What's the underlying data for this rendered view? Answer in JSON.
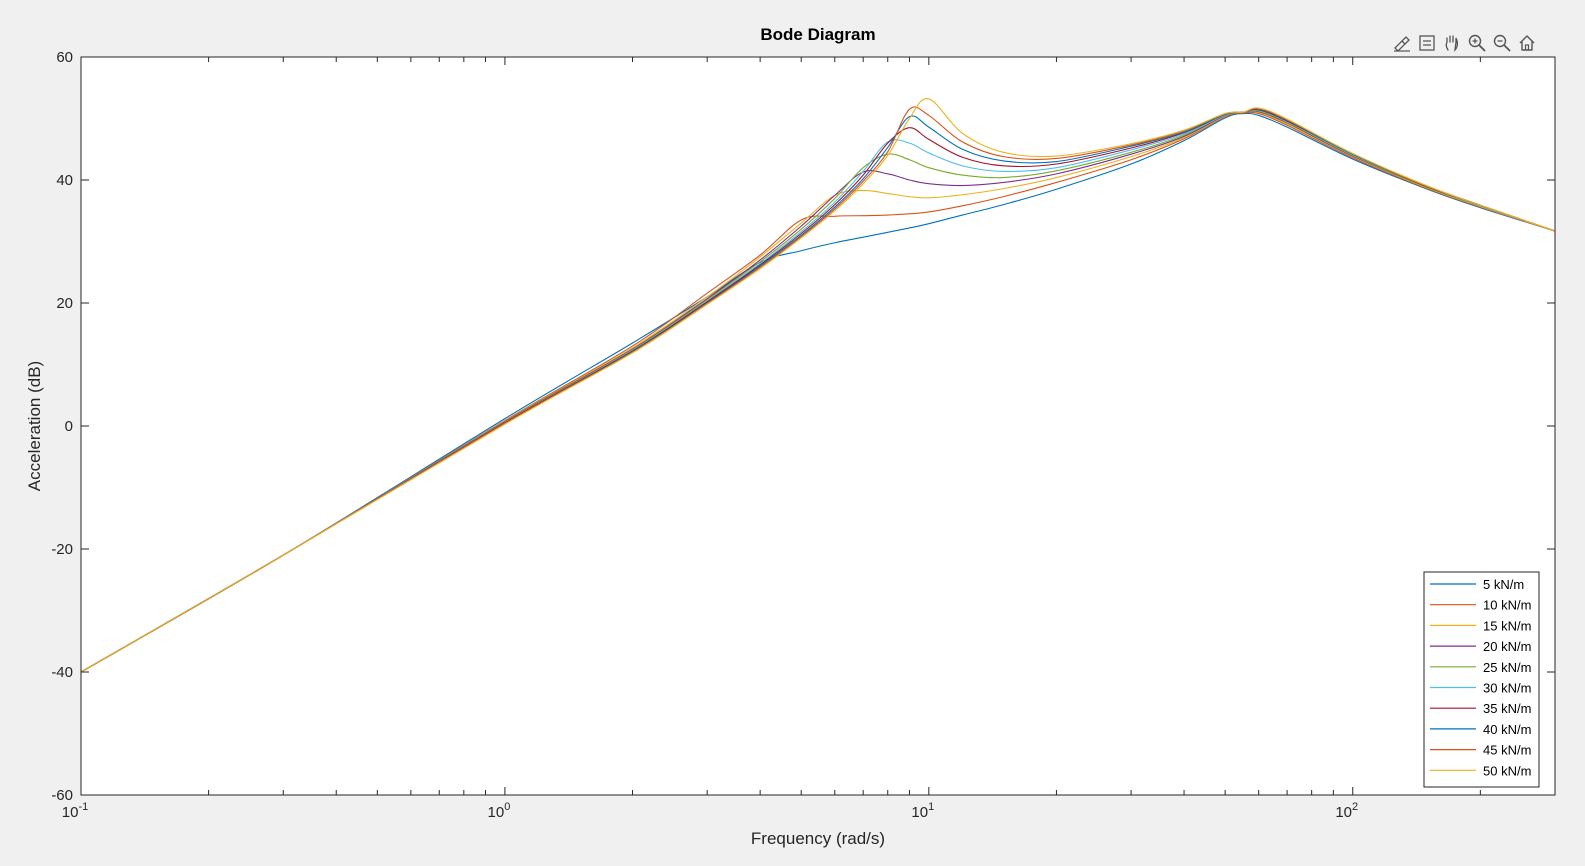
{
  "toolbar": {
    "icons": [
      "brush-icon",
      "datatip-icon",
      "pan-hand-icon",
      "zoom-in-icon",
      "zoom-out-icon",
      "home-icon"
    ]
  },
  "chart_data": {
    "type": "line",
    "title": "Bode Diagram",
    "xlabel": "Frequency  (rad/s)",
    "ylabel": "Acceleration (dB)",
    "xscale": "log",
    "xlim": [
      0.1,
      300
    ],
    "ylim": [
      -60,
      60
    ],
    "grid": false,
    "legend_location": "bottom-right",
    "x_major_ticks": [
      {
        "base": "10",
        "exp": "-1"
      },
      {
        "base": "10",
        "exp": "0"
      },
      {
        "base": "10",
        "exp": "1"
      },
      {
        "base": "10",
        "exp": "2"
      }
    ],
    "y_ticks": [
      "60",
      "40",
      "20",
      "0",
      "-20",
      "-40",
      "-60"
    ],
    "x": [
      0.1,
      0.3,
      1,
      2,
      3,
      4,
      5,
      6,
      7,
      8,
      9,
      10,
      12,
      15,
      20,
      30,
      40,
      50,
      55,
      60,
      70,
      100,
      150,
      200,
      300
    ],
    "series": [
      {
        "name": "5 kN/m",
        "color": "#0072BD",
        "values": [
          -40,
          -21,
          1.2,
          13.5,
          21.0,
          26.6,
          28.5,
          29.8,
          30.7,
          31.5,
          32.2,
          32.9,
          34.3,
          36.0,
          38.5,
          42.6,
          46.4,
          50.1,
          50.8,
          50.5,
          48.6,
          43.4,
          38.5,
          35.5,
          31.7
        ]
      },
      {
        "name": "10 kN/m",
        "color": "#D95319",
        "values": [
          -40,
          -21,
          0.9,
          13.0,
          21.6,
          27.8,
          33.5,
          34.1,
          34.2,
          34.3,
          34.5,
          34.8,
          35.8,
          37.3,
          39.6,
          43.3,
          46.7,
          50.3,
          50.9,
          50.8,
          48.9,
          43.6,
          38.6,
          35.6,
          31.7
        ]
      },
      {
        "name": "15 kN/m",
        "color": "#EDB120",
        "values": [
          -40,
          -21,
          0.8,
          12.7,
          21.0,
          27.5,
          33.0,
          37.5,
          38.3,
          37.8,
          37.3,
          37.1,
          37.6,
          38.6,
          40.4,
          43.8,
          46.9,
          50.4,
          51.0,
          51.0,
          49.1,
          43.8,
          38.7,
          35.7,
          31.7
        ]
      },
      {
        "name": "20 kN/m",
        "color": "#7E2F8E",
        "values": [
          -40,
          -21,
          0.7,
          12.5,
          20.7,
          27.0,
          32.5,
          37.5,
          41.3,
          41.0,
          40.0,
          39.4,
          39.1,
          39.6,
          41.0,
          44.2,
          47.1,
          50.5,
          51.0,
          51.1,
          49.3,
          43.9,
          38.8,
          35.8,
          31.7
        ]
      },
      {
        "name": "25 kN/m",
        "color": "#77AC30",
        "values": [
          -40,
          -21,
          0.6,
          12.4,
          20.5,
          26.7,
          32.0,
          37.0,
          42.0,
          44.2,
          43.3,
          42.0,
          40.8,
          40.4,
          41.5,
          44.5,
          47.3,
          50.6,
          51.0,
          51.2,
          49.4,
          44.0,
          38.8,
          35.8,
          31.7
        ]
      },
      {
        "name": "30 kN/m",
        "color": "#4DBEEE",
        "values": [
          -40,
          -21,
          0.5,
          12.3,
          20.3,
          26.4,
          31.6,
          36.4,
          41.4,
          46.2,
          46.0,
          44.4,
          42.3,
          41.4,
          42.0,
          44.9,
          47.5,
          50.6,
          51.0,
          51.3,
          49.5,
          44.1,
          38.9,
          35.8,
          31.7
        ]
      },
      {
        "name": "35 kN/m",
        "color": "#A2142F",
        "values": [
          -40,
          -21,
          0.5,
          12.2,
          20.2,
          26.2,
          31.3,
          36.0,
          40.8,
          46.0,
          48.5,
          46.6,
          43.7,
          42.3,
          42.6,
          45.2,
          47.7,
          50.7,
          51.0,
          51.4,
          49.6,
          44.2,
          38.9,
          35.9,
          31.7
        ]
      },
      {
        "name": "40 kN/m",
        "color": "#0072BD",
        "values": [
          -40,
          -21,
          0.4,
          12.1,
          20.0,
          26.0,
          31.0,
          35.6,
          40.2,
          45.3,
          50.3,
          48.6,
          45.0,
          43.1,
          43.0,
          45.5,
          47.8,
          50.7,
          51.0,
          51.5,
          49.7,
          44.2,
          39.0,
          35.9,
          31.7
        ]
      },
      {
        "name": "45 kN/m",
        "color": "#D95319",
        "values": [
          -40,
          -21,
          0.4,
          12.0,
          19.9,
          25.8,
          30.8,
          35.3,
          39.8,
          44.6,
          51.5,
          50.5,
          46.2,
          43.8,
          43.5,
          45.7,
          48.0,
          50.8,
          51.0,
          51.6,
          49.8,
          44.3,
          39.0,
          35.9,
          31.7
        ]
      },
      {
        "name": "50 kN/m",
        "color": "#EDB120",
        "values": [
          -40,
          -21,
          0.3,
          11.9,
          19.8,
          25.6,
          30.6,
          35.0,
          39.4,
          44.0,
          50.0,
          53.2,
          47.6,
          44.5,
          43.9,
          45.9,
          48.1,
          50.8,
          51.0,
          51.7,
          49.9,
          44.3,
          39.0,
          35.9,
          31.7
        ]
      }
    ]
  }
}
